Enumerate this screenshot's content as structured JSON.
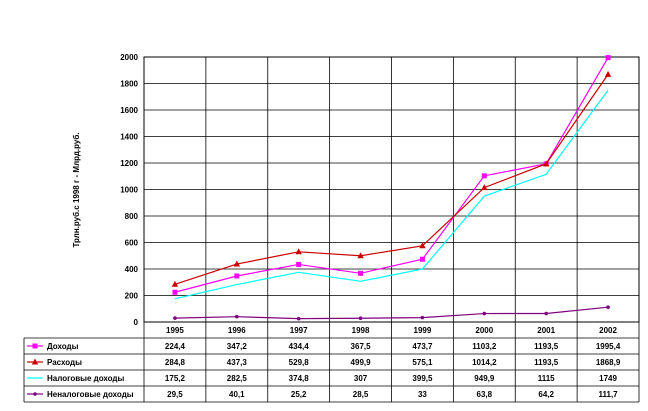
{
  "chart_data": {
    "type": "line",
    "title": "",
    "xlabel": "",
    "ylabel": "Трлн.руб.с 1998 г - Млрд.руб.",
    "categories": [
      "1995",
      "1996",
      "1997",
      "1998",
      "1999",
      "2000",
      "2001",
      "2002"
    ],
    "ylim": [
      0,
      2000
    ],
    "yticks": [
      "0",
      "200",
      "400",
      "600",
      "800",
      "1000",
      "1200",
      "1400",
      "1600",
      "1800",
      "2000"
    ],
    "grid": true,
    "legend": "data table below plot",
    "series": [
      {
        "name": "Доходы",
        "color": "#ff00ff",
        "marker": "square",
        "values": [
          224.4,
          347.2,
          434.4,
          367.5,
          473.7,
          1103.2,
          1193.5,
          1995.4
        ],
        "labels": [
          "224,4",
          "347,2",
          "434,4",
          "367,5",
          "473,7",
          "1103,2",
          "1193,5",
          "1995,4"
        ]
      },
      {
        "name": "Расходы",
        "color": "#cc0000",
        "marker": "triangle",
        "values": [
          284.8,
          437.3,
          529.8,
          499.9,
          575.1,
          1014.2,
          1193.5,
          1868.9
        ],
        "labels": [
          "284,8",
          "437,3",
          "529,8",
          "499,9",
          "575,1",
          "1014,2",
          "1193,5",
          "1868,9"
        ]
      },
      {
        "name": "Налоговые доходы",
        "color": "#00ffff",
        "marker": "none",
        "values": [
          175.2,
          282.5,
          374.8,
          307,
          399.5,
          949.9,
          1115,
          1749
        ],
        "labels": [
          "175,2",
          "282,5",
          "374,8",
          "307",
          "399,5",
          "949,9",
          "1115",
          "1749"
        ]
      },
      {
        "name": "Неналоговые доходы",
        "color": "#800080",
        "marker": "dot",
        "values": [
          29.5,
          40.1,
          25.2,
          28.5,
          33,
          63.8,
          64.2,
          111.7
        ],
        "labels": [
          "29,5",
          "40,1",
          "25,2",
          "28,5",
          "33",
          "63,8",
          "64,2",
          "111,7"
        ]
      }
    ]
  }
}
